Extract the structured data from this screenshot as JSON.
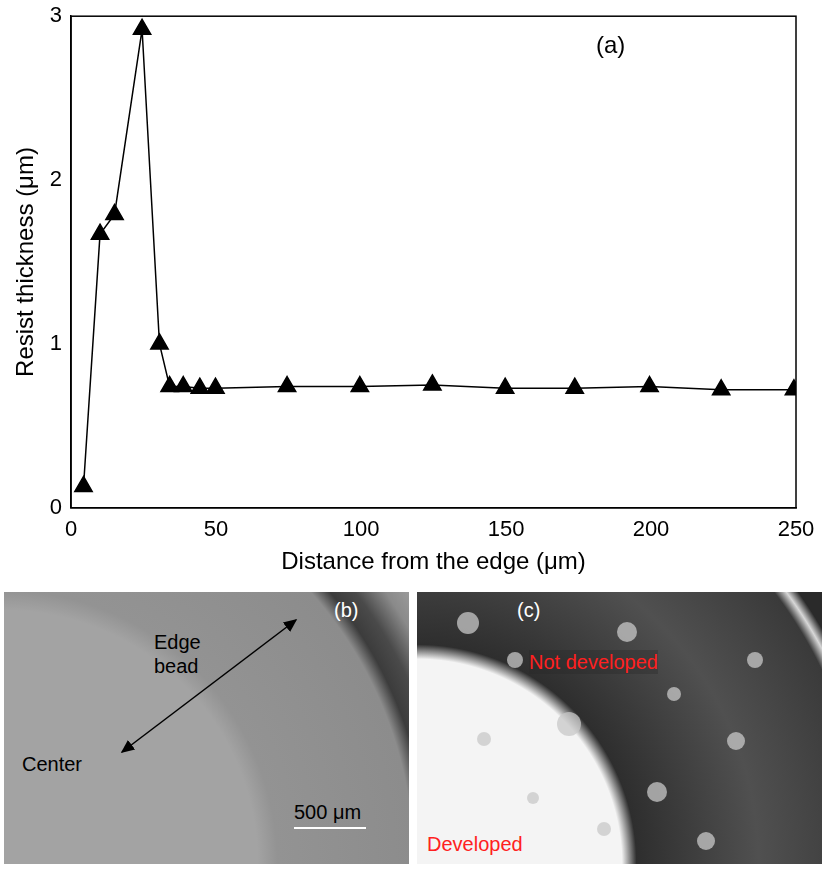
{
  "chart_data": {
    "type": "line",
    "annotation": "(a)",
    "x_label": "Distance from the edge (μm)",
    "y_label": "Resist thickness (μm)",
    "x": [
      4.3,
      10,
      15,
      24.5,
      30.5,
      34,
      38.7,
      44.4,
      49.8,
      74.5,
      99.6,
      124.6,
      149.7,
      173.7,
      199.5,
      224.2,
      249.3
    ],
    "series": [
      {
        "color": "#000000",
        "marker": "triangle",
        "line_style": "solid",
        "values": [
          0.13,
          1.67,
          1.79,
          2.92,
          1.0,
          0.74,
          0.74,
          0.73,
          0.73,
          0.74,
          0.74,
          0.75,
          0.73,
          0.73,
          0.74,
          0.72,
          0.72
        ]
      }
    ],
    "xlim": [
      0,
      250
    ],
    "xticks": [
      0,
      50,
      100,
      150,
      200,
      250
    ],
    "ylim": [
      0,
      3
    ],
    "yticks": [
      0,
      1,
      2,
      3
    ],
    "grid": false
  },
  "photos": [
    {
      "label": "(b)",
      "edge_label": "Edge bead",
      "center_label": "Center",
      "scale_bar": "500 μm"
    },
    {
      "label": "(c)",
      "top_label": "Not developed",
      "bottom_label": "Developed"
    }
  ]
}
